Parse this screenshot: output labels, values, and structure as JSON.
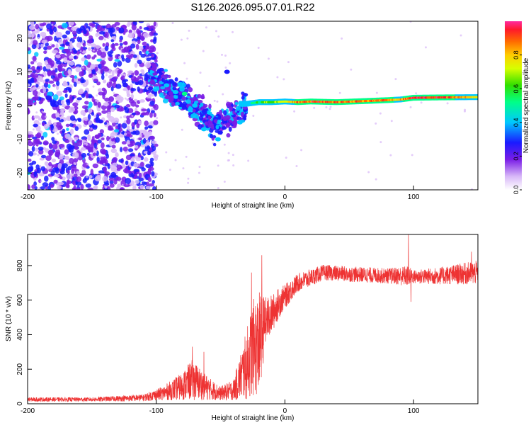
{
  "figure_title": "S126.2026.095.07.01.R22",
  "chart_data": [
    {
      "type": "heatmap",
      "title": "",
      "xlabel": "Height of straight line (km)",
      "ylabel": "Frequency (Hz)",
      "xlim": [
        -200,
        150
      ],
      "ylim": [
        -25,
        25
      ],
      "x_ticks": [
        -200,
        -100,
        0,
        100
      ],
      "x_tick_labels": [
        "-200",
        "-100",
        "0",
        "100"
      ],
      "y_ticks": [
        -20,
        -10,
        0,
        10,
        20
      ],
      "y_tick_labels": [
        "-20",
        "-10",
        "0",
        "10",
        "20"
      ],
      "colorbar": {
        "label": "Normalized spectral amplitude",
        "range": [
          0,
          1
        ],
        "ticks": [
          0.0,
          0.2,
          0.4,
          0.6,
          0.8
        ],
        "tick_labels": [
          "0.0",
          "0.2",
          "0.4",
          "0.6",
          "0.8"
        ]
      },
      "tone_track": {
        "x": [
          -30,
          -20,
          -10,
          0,
          10,
          20,
          40,
          60,
          80,
          90,
          100,
          120,
          150
        ],
        "frequency": [
          0.5,
          1.0,
          1.0,
          1.2,
          1.0,
          1.2,
          1.0,
          1.3,
          1.6,
          1.8,
          2.3,
          2.4,
          2.5
        ],
        "amplitude": [
          0.3,
          0.55,
          0.65,
          0.7,
          0.88,
          0.92,
          0.9,
          0.85,
          0.88,
          0.82,
          0.95,
          0.92,
          0.75
        ]
      },
      "noise_region_x": [
        -200,
        -105
      ],
      "transition_blobs": [
        {
          "x": -92,
          "f": 6,
          "amp": 0.35
        },
        {
          "x": -85,
          "f": 4,
          "amp": 0.35
        },
        {
          "x": -78,
          "f": 3.5,
          "amp": 0.4
        },
        {
          "x": -70,
          "f": 0,
          "amp": 0.3
        },
        {
          "x": -63,
          "f": -7,
          "amp": 0.3
        },
        {
          "x": -52,
          "f": -10,
          "amp": 0.3
        },
        {
          "x": -35,
          "f": -5,
          "amp": 0.3
        },
        {
          "x": -45,
          "f": 10,
          "amp": 0.2
        }
      ]
    },
    {
      "type": "line",
      "title": "",
      "xlabel": "Height of straight line (km)",
      "ylabel": "SNR (10 * v/v)",
      "xlim": [
        -200,
        150
      ],
      "ylim": [
        0,
        980
      ],
      "x_ticks": [
        -200,
        -100,
        0,
        100
      ],
      "x_tick_labels": [
        "-200",
        "-100",
        "0",
        "100"
      ],
      "y_ticks": [
        0,
        200,
        400,
        600,
        800
      ],
      "y_tick_labels": [
        "0",
        "200",
        "400",
        "600",
        "800"
      ],
      "series": [
        {
          "name": "SNR",
          "color": "#ee3333",
          "envelope_x": [
            -200,
            -150,
            -110,
            -95,
            -80,
            -72,
            -60,
            -50,
            -40,
            -30,
            -25,
            -20,
            -15,
            -10,
            -5,
            0,
            10,
            20,
            30,
            50,
            80,
            95,
            100,
            120,
            150
          ],
          "envelope_mean": [
            25,
            25,
            35,
            60,
            100,
            140,
            90,
            60,
            80,
            220,
            320,
            350,
            480,
            520,
            580,
            620,
            700,
            730,
            760,
            750,
            740,
            740,
            735,
            740,
            760
          ],
          "envelope_noise": [
            12,
            12,
            20,
            40,
            80,
            120,
            70,
            40,
            60,
            200,
            280,
            300,
            140,
            110,
            90,
            70,
            55,
            50,
            45,
            45,
            45,
            60,
            40,
            50,
            70
          ],
          "spikes": [
            {
              "x": -18,
              "y": 860
            },
            {
              "x": -26,
              "y": 760
            },
            {
              "x": -72,
              "y": 330
            },
            {
              "x": -63,
              "y": 300
            },
            {
              "x": 96,
              "y": 980
            },
            {
              "x": 98,
              "y": 590
            },
            {
              "x": 145,
              "y": 880
            }
          ]
        }
      ]
    }
  ]
}
